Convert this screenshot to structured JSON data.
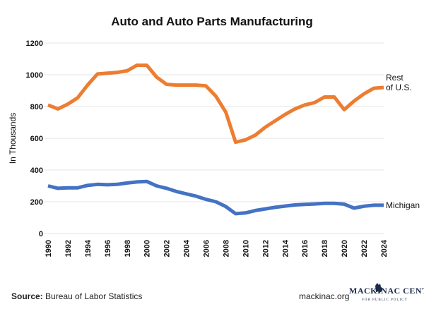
{
  "chart_data": {
    "type": "line",
    "title": "Auto and Auto Parts Manufacturing",
    "xlabel": "",
    "ylabel": "In Thousands",
    "ylim": [
      0,
      1200
    ],
    "yticks": [
      "0",
      "200",
      "400",
      "600",
      "800",
      "1000",
      "1200"
    ],
    "xticks": [
      "1990",
      "1992",
      "1994",
      "1996",
      "1998",
      "2000",
      "2002",
      "2004",
      "2006",
      "2008",
      "2010",
      "2012",
      "2014",
      "2016",
      "2018",
      "2020",
      "2022",
      "2024"
    ],
    "x": [
      1990,
      1991,
      1992,
      1993,
      1994,
      1995,
      1996,
      1997,
      1998,
      1999,
      2000,
      2001,
      2002,
      2003,
      2004,
      2005,
      2006,
      2007,
      2008,
      2009,
      2010,
      2011,
      2012,
      2013,
      2014,
      2015,
      2016,
      2017,
      2018,
      2019,
      2020,
      2021,
      2022,
      2023,
      2024
    ],
    "grid": true,
    "series": [
      {
        "name": "Rest of U.S.",
        "name_lines": [
          "Rest",
          "of U.S."
        ],
        "color": "#ed7d31",
        "values": [
          810,
          785,
          815,
          855,
          935,
          1005,
          1010,
          1015,
          1025,
          1060,
          1060,
          985,
          940,
          935,
          935,
          935,
          930,
          865,
          765,
          575,
          590,
          620,
          670,
          710,
          750,
          785,
          810,
          825,
          860,
          860,
          780,
          835,
          880,
          915,
          920
        ]
      },
      {
        "name": "Michigan",
        "name_lines": [
          "Michigan"
        ],
        "color": "#4472c4",
        "values": [
          300,
          285,
          288,
          288,
          303,
          310,
          307,
          310,
          318,
          325,
          328,
          300,
          285,
          265,
          250,
          235,
          215,
          200,
          170,
          125,
          130,
          145,
          155,
          165,
          173,
          180,
          183,
          186,
          190,
          190,
          185,
          160,
          172,
          178,
          178
        ]
      }
    ]
  },
  "footer": {
    "source_label": "Source:",
    "source_text": " Bureau of Labor Statistics",
    "site": "mackinac.org",
    "logo_name": "MACKINAC CENTER",
    "logo_sub": "FOR PUBLIC POLICY"
  }
}
